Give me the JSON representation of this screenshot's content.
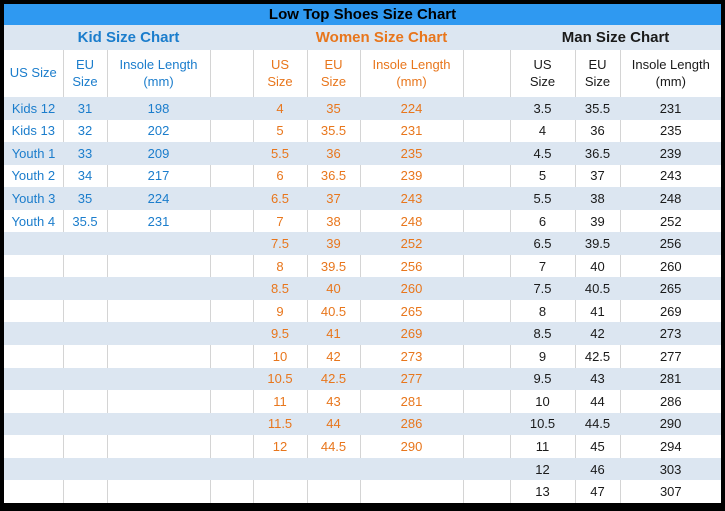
{
  "window": {
    "title": "Low Top Shoes Size Chart"
  },
  "colors": {
    "title_bg": "#2f99f1",
    "band_bg": "#dce6f1",
    "kid_text": "#1b7dcc",
    "women_text": "#e8761c",
    "man_text": "#1a1a1a",
    "grid_border": "#d4d4d4"
  },
  "layout": {
    "total_rows": 18,
    "legend": "striped rows alternate light blue / white"
  },
  "chart_data": [
    {
      "type": "table",
      "title": "Kid Size Chart",
      "columns": [
        "US Size",
        "EU Size",
        "Insole Length (mm)"
      ],
      "header_display": [
        [
          "US Size"
        ],
        [
          "EU",
          "Size"
        ],
        [
          "Insole Length",
          "(mm)"
        ]
      ],
      "rows": [
        [
          "Kids 12",
          "31",
          "198"
        ],
        [
          "Kids 13",
          "32",
          "202"
        ],
        [
          "Youth 1",
          "33",
          "209"
        ],
        [
          "Youth 2",
          "34",
          "217"
        ],
        [
          "Youth 3",
          "35",
          "224"
        ],
        [
          "Youth 4",
          "35.5",
          "231"
        ]
      ]
    },
    {
      "type": "table",
      "title": "Women Size Chart",
      "columns": [
        "US Size",
        "EU Size",
        "Insole Length (mm)"
      ],
      "header_display": [
        [
          "US",
          "Size"
        ],
        [
          "EU",
          "Size"
        ],
        [
          "Insole Length",
          "(mm)"
        ]
      ],
      "rows": [
        [
          "4",
          "35",
          "224"
        ],
        [
          "5",
          "35.5",
          "231"
        ],
        [
          "5.5",
          "36",
          "235"
        ],
        [
          "6",
          "36.5",
          "239"
        ],
        [
          "6.5",
          "37",
          "243"
        ],
        [
          "7",
          "38",
          "248"
        ],
        [
          "7.5",
          "39",
          "252"
        ],
        [
          "8",
          "39.5",
          "256"
        ],
        [
          "8.5",
          "40",
          "260"
        ],
        [
          "9",
          "40.5",
          "265"
        ],
        [
          "9.5",
          "41",
          "269"
        ],
        [
          "10",
          "42",
          "273"
        ],
        [
          "10.5",
          "42.5",
          "277"
        ],
        [
          "11",
          "43",
          "281"
        ],
        [
          "11.5",
          "44",
          "286"
        ],
        [
          "12",
          "44.5",
          "290"
        ]
      ]
    },
    {
      "type": "table",
      "title": "Man Size Chart",
      "columns": [
        "US Size",
        "EU Size",
        "Insole Length (mm)"
      ],
      "header_display": [
        [
          "US",
          "Size"
        ],
        [
          "EU",
          "Size"
        ],
        [
          "Insole Length",
          "(mm)"
        ]
      ],
      "rows": [
        [
          "3.5",
          "35.5",
          "231"
        ],
        [
          "4",
          "36",
          "235"
        ],
        [
          "4.5",
          "36.5",
          "239"
        ],
        [
          "5",
          "37",
          "243"
        ],
        [
          "5.5",
          "38",
          "248"
        ],
        [
          "6",
          "39",
          "252"
        ],
        [
          "6.5",
          "39.5",
          "256"
        ],
        [
          "7",
          "40",
          "260"
        ],
        [
          "7.5",
          "40.5",
          "265"
        ],
        [
          "8",
          "41",
          "269"
        ],
        [
          "8.5",
          "42",
          "273"
        ],
        [
          "9",
          "42.5",
          "277"
        ],
        [
          "9.5",
          "43",
          "281"
        ],
        [
          "10",
          "44",
          "286"
        ],
        [
          "10.5",
          "44.5",
          "290"
        ],
        [
          "11",
          "45",
          "294"
        ],
        [
          "12",
          "46",
          "303"
        ],
        [
          "13",
          "47",
          "307"
        ]
      ]
    }
  ]
}
